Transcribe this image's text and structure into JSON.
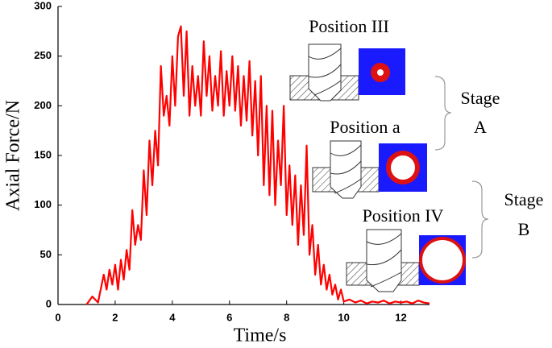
{
  "chart_data": {
    "type": "line",
    "x_label": "Time/s",
    "y_label": "Axial Force/N",
    "xlim": [
      0,
      13
    ],
    "ylim": [
      0,
      300
    ],
    "xticks": [
      0,
      2,
      4,
      6,
      8,
      10,
      12
    ],
    "yticks": [
      0,
      50,
      100,
      150,
      200,
      250,
      300
    ],
    "color": "#ff0000",
    "x": [
      1.0,
      1.2,
      1.4,
      1.6,
      1.7,
      1.8,
      1.9,
      2.0,
      2.1,
      2.2,
      2.3,
      2.4,
      2.5,
      2.6,
      2.7,
      2.8,
      2.9,
      3.0,
      3.1,
      3.2,
      3.3,
      3.4,
      3.5,
      3.6,
      3.7,
      3.8,
      3.9,
      4.0,
      4.1,
      4.2,
      4.3,
      4.4,
      4.5,
      4.6,
      4.7,
      4.8,
      4.9,
      5.0,
      5.1,
      5.2,
      5.3,
      5.4,
      5.5,
      5.6,
      5.7,
      5.8,
      5.9,
      6.0,
      6.1,
      6.2,
      6.3,
      6.4,
      6.5,
      6.6,
      6.7,
      6.8,
      6.9,
      7.0,
      7.1,
      7.2,
      7.3,
      7.4,
      7.5,
      7.6,
      7.7,
      7.8,
      7.9,
      8.0,
      8.1,
      8.2,
      8.3,
      8.4,
      8.5,
      8.6,
      8.7,
      8.8,
      8.9,
      9.0,
      9.1,
      9.2,
      9.3,
      9.4,
      9.5,
      9.6,
      9.7,
      9.8,
      9.9,
      10.0,
      10.2,
      10.4,
      10.6,
      10.8,
      11.0,
      11.2,
      11.4,
      11.6,
      11.8,
      12.0,
      12.2,
      12.4,
      12.6,
      12.8,
      13.0
    ],
    "values": [
      0,
      8,
      2,
      30,
      15,
      35,
      20,
      40,
      15,
      45,
      25,
      55,
      35,
      95,
      60,
      80,
      65,
      135,
      90,
      165,
      120,
      175,
      140,
      240,
      190,
      210,
      180,
      250,
      200,
      270,
      280,
      210,
      275,
      190,
      240,
      200,
      230,
      190,
      265,
      210,
      250,
      195,
      230,
      200,
      255,
      190,
      235,
      200,
      250,
      195,
      240,
      180,
      230,
      185,
      245,
      170,
      225,
      150,
      230,
      120,
      200,
      110,
      195,
      100,
      165,
      120,
      200,
      90,
      140,
      80,
      130,
      60,
      120,
      70,
      160,
      50,
      80,
      30,
      60,
      20,
      40,
      15,
      30,
      10,
      20,
      5,
      15,
      3,
      5,
      2,
      4,
      1,
      3,
      2,
      4,
      1,
      3,
      2,
      3,
      1,
      4,
      2,
      1
    ],
    "annotations": [
      "Position III",
      "Stage",
      "A",
      "Position a",
      "Stage",
      "B",
      "Position IV"
    ]
  }
}
